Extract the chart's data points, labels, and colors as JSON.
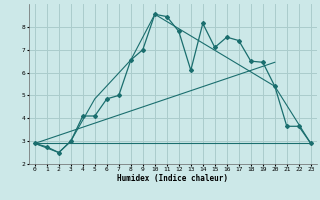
{
  "xlabel": "Humidex (Indice chaleur)",
  "bg_color": "#cce8e8",
  "grid_color": "#aacccc",
  "line_color": "#1a6e6e",
  "xlim": [
    -0.5,
    23.5
  ],
  "ylim": [
    2.0,
    9.0
  ],
  "yticks": [
    2,
    3,
    4,
    5,
    6,
    7,
    8
  ],
  "xticks": [
    0,
    1,
    2,
    3,
    4,
    5,
    6,
    7,
    8,
    9,
    10,
    11,
    12,
    13,
    14,
    15,
    16,
    17,
    18,
    19,
    20,
    21,
    22,
    23
  ],
  "line1_x": [
    0,
    1,
    2,
    3,
    4,
    5,
    6,
    7,
    8,
    9,
    10,
    11,
    12,
    13,
    14,
    15,
    16,
    17,
    18,
    19,
    20,
    21,
    22,
    23
  ],
  "line1_y": [
    2.9,
    2.75,
    2.5,
    3.0,
    4.1,
    4.1,
    4.85,
    5.0,
    6.55,
    7.0,
    8.55,
    8.45,
    7.8,
    6.1,
    8.15,
    7.1,
    7.55,
    7.4,
    6.5,
    6.45,
    5.4,
    3.65,
    3.65,
    2.9
  ],
  "line2_x": [
    0,
    2,
    3,
    5,
    8,
    10,
    20,
    23
  ],
  "line2_y": [
    2.9,
    2.5,
    3.0,
    4.85,
    6.55,
    8.55,
    5.4,
    2.9
  ],
  "line3_x": [
    0,
    23
  ],
  "line3_y": [
    2.9,
    2.9
  ],
  "line4_x": [
    0,
    20
  ],
  "line4_y": [
    2.9,
    6.45
  ]
}
